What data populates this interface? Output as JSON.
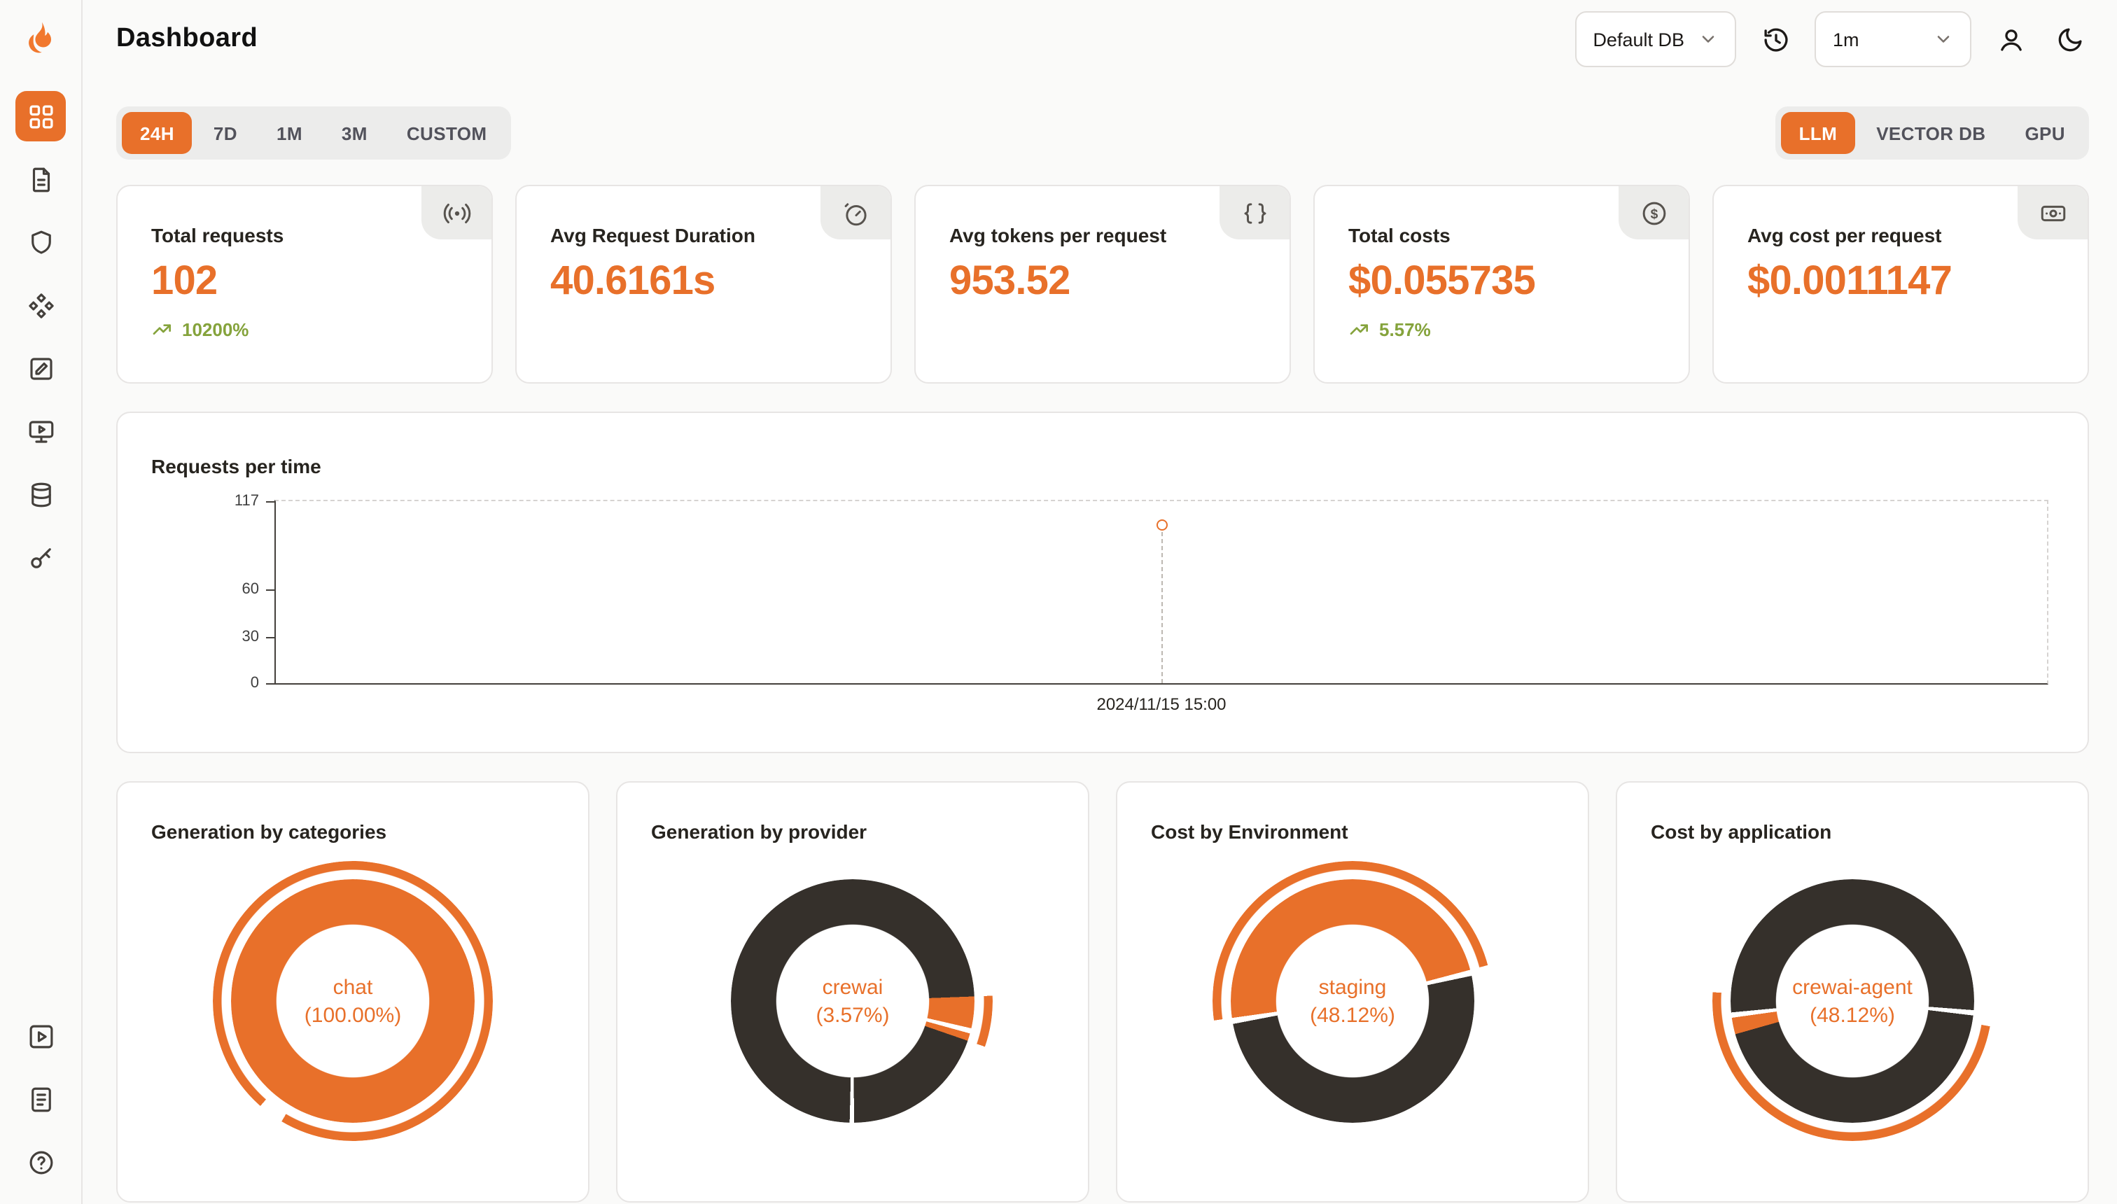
{
  "header": {
    "title": "Dashboard",
    "database_select": {
      "value": "Default DB"
    },
    "interval_select": {
      "value": "1m"
    }
  },
  "sidebar": {
    "items": [
      {
        "name": "dashboard",
        "active": true
      },
      {
        "name": "requests",
        "active": false
      },
      {
        "name": "guardrails",
        "active": false
      },
      {
        "name": "integrations",
        "active": false
      },
      {
        "name": "evaluations",
        "active": false
      },
      {
        "name": "playground",
        "active": false
      },
      {
        "name": "datasets",
        "active": false
      },
      {
        "name": "api-keys",
        "active": false
      }
    ],
    "bottom_items": [
      {
        "name": "demos"
      },
      {
        "name": "changelog"
      },
      {
        "name": "help"
      }
    ]
  },
  "time_range_tabs": {
    "items": [
      {
        "label": "24H",
        "active": true
      },
      {
        "label": "7D",
        "active": false
      },
      {
        "label": "1M",
        "active": false
      },
      {
        "label": "3M",
        "active": false
      },
      {
        "label": "CUSTOM",
        "active": false
      }
    ]
  },
  "category_tabs": {
    "items": [
      {
        "label": "LLM",
        "active": true
      },
      {
        "label": "VECTOR DB",
        "active": false
      },
      {
        "label": "GPU",
        "active": false
      }
    ]
  },
  "stats": [
    {
      "title": "Total requests",
      "value": "102",
      "change": "10200%",
      "icon": "radio-icon"
    },
    {
      "title": "Avg Request Duration",
      "value": "40.6161s",
      "change": "",
      "icon": "timer-icon"
    },
    {
      "title": "Avg tokens per request",
      "value": "953.52",
      "change": "",
      "icon": "braces-icon"
    },
    {
      "title": "Total costs",
      "value": "$0.055735",
      "change": "5.57%",
      "icon": "circle-dollar-icon"
    },
    {
      "title": "Avg cost per request",
      "value": "$0.0011147",
      "change": "",
      "icon": "banknote-icon"
    }
  ],
  "colors": {
    "accent": "#e8702a",
    "dark_slice": "#35302b",
    "positive": "#85a33c",
    "background": "#fafaf9"
  },
  "chart_data": [
    {
      "type": "line",
      "title": "Requests per time",
      "xlabel": "",
      "ylabel": "",
      "ylim": [
        0,
        117
      ],
      "yticks": [
        0,
        30,
        60,
        117
      ],
      "grid": false,
      "legend": false,
      "point_position_percent": 50,
      "series": [
        {
          "name": "requests",
          "points": [
            {
              "x": "2024/11/15 15:00",
              "y": 102
            }
          ]
        }
      ]
    },
    {
      "type": "pie",
      "title": "Generation by categories",
      "center_label": "chat",
      "center_value": "(100.00%)",
      "slices": [
        {
          "label": "chat",
          "value": 100
        }
      ],
      "render": {
        "rotate": 0,
        "ring": [
          [
            "#e8702a",
            0,
            100
          ]
        ],
        "outer": [
          [
            "#e8702a",
            0,
            58.5
          ],
          [
            "#e8702a",
            61.5,
            100
          ]
        ]
      }
    },
    {
      "type": "pie",
      "title": "Generation by provider",
      "center_label": "crewai",
      "center_value": "(3.57%)",
      "slices": [
        {
          "label": "crewai",
          "value": 3.57
        }
      ],
      "render": {
        "rotate": 0,
        "ring": [
          [
            "#35302b",
            0,
            24.4
          ],
          [
            "#e8702a",
            24.4,
            28.6
          ],
          [
            "#e8702a",
            29.3,
            30.3
          ],
          [
            "#35302b",
            30.3,
            49.8
          ],
          [
            "#35302b",
            50.4,
            100
          ]
        ],
        "outer": [
          [
            "#e8702a",
            24.4,
            30.3
          ]
        ]
      }
    },
    {
      "type": "pie",
      "title": "Cost by Environment",
      "center_label": "staging",
      "center_value": "(48.12%)",
      "slices": [
        {
          "label": "staging",
          "value": 48.12
        }
      ],
      "render": {
        "rotate": 262,
        "ring": [
          [
            "#e8702a",
            0,
            48.1
          ],
          [
            "#35302b",
            48.9,
            99.2
          ]
        ],
        "outer": [
          [
            "#e8702a",
            0,
            48.1
          ]
        ]
      }
    },
    {
      "type": "pie",
      "title": "Cost by application",
      "center_label": "crewai-agent",
      "center_value": "(48.12%)",
      "slices": [
        {
          "label": "crewai-agent",
          "value": 48.12
        }
      ],
      "render": {
        "rotate": 0,
        "ring": [
          [
            "#35302b",
            0,
            26.2
          ],
          [
            "#35302b",
            26.9,
            70.6
          ],
          [
            "#e8702a",
            70.6,
            72.8
          ],
          [
            "#35302b",
            73.5,
            100
          ]
        ],
        "outer": [
          [
            "#e8702a",
            27.9,
            76
          ]
        ]
      }
    }
  ]
}
